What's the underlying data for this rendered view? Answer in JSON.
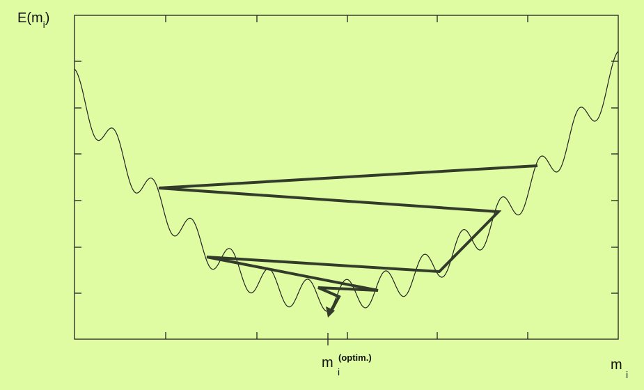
{
  "y_axis_label": {
    "base": "E(m",
    "subscript": "i",
    "close": ")"
  },
  "optimum_label": {
    "base": "m",
    "subscript": "i",
    "superscript": "(optim.)"
  },
  "x_axis_label": {
    "base": "m",
    "subscript": "i"
  }
}
